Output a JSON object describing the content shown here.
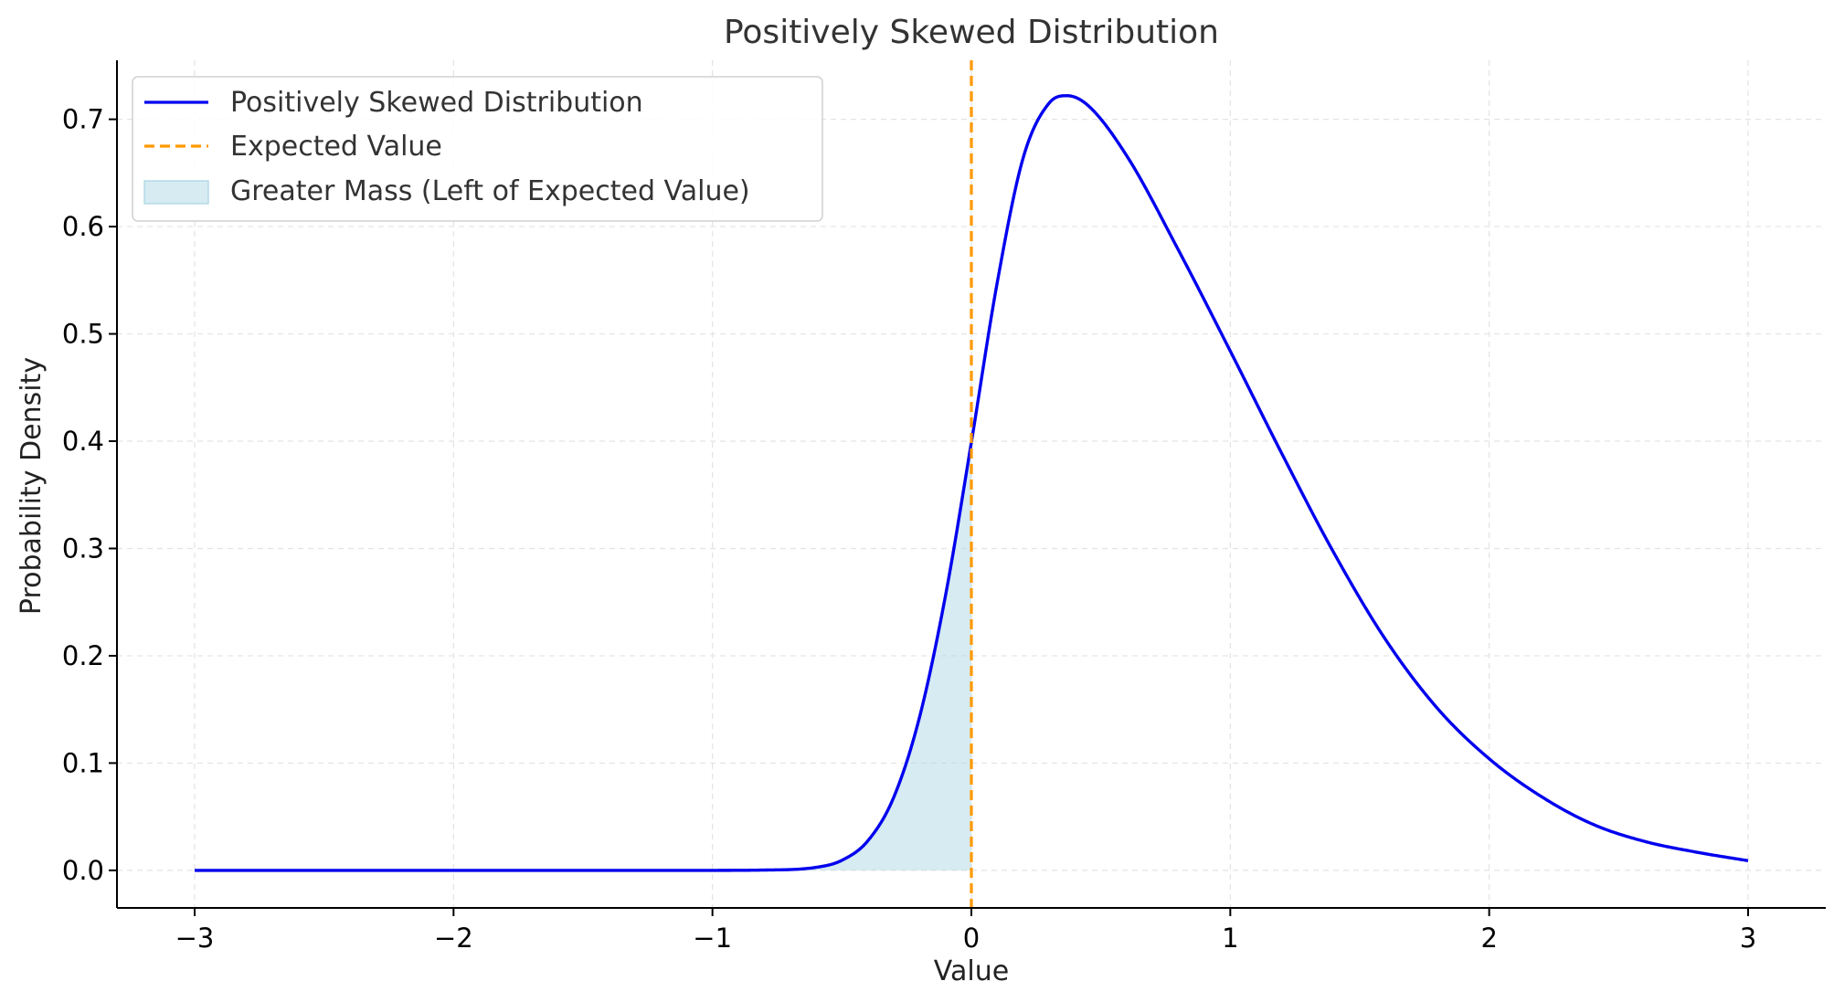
{
  "chart_data": {
    "type": "line",
    "title": "Positively Skewed Distribution",
    "xlabel": "Value",
    "ylabel": "Probability Density",
    "xlim": [
      -3.3,
      3.3
    ],
    "ylim": [
      -0.035,
      0.755
    ],
    "x_ticks": [
      -3,
      -2,
      -1,
      0,
      1,
      2,
      3
    ],
    "x_tick_labels": [
      "−3",
      "−2",
      "−1",
      "0",
      "1",
      "2",
      "3"
    ],
    "y_ticks": [
      0.0,
      0.1,
      0.2,
      0.3,
      0.4,
      0.5,
      0.6,
      0.7
    ],
    "y_tick_labels": [
      "0.0",
      "0.1",
      "0.2",
      "0.3",
      "0.4",
      "0.5",
      "0.6",
      "0.7"
    ],
    "grid": true,
    "legend_position": "top-left",
    "series": [
      {
        "name": "Positively Skewed Distribution",
        "color": "#0000ee",
        "kind": "line",
        "x": [
          -3.0,
          -2.0,
          -1.0,
          -0.8,
          -0.6,
          -0.5,
          -0.4,
          -0.3,
          -0.2,
          -0.1,
          0.0,
          0.1,
          0.2,
          0.3,
          0.37,
          0.45,
          0.6,
          0.8,
          1.0,
          1.2,
          1.4,
          1.6,
          1.8,
          2.0,
          2.2,
          2.4,
          2.6,
          2.8,
          3.0
        ],
        "y": [
          0.0,
          0.0,
          0.0,
          0.0003,
          0.0028,
          0.0094,
          0.0275,
          0.068,
          0.143,
          0.256,
          0.399,
          0.548,
          0.664,
          0.715,
          0.722,
          0.713,
          0.666,
          0.578,
          0.484,
          0.388,
          0.296,
          0.215,
          0.151,
          0.104,
          0.069,
          0.043,
          0.027,
          0.017,
          0.009
        ]
      },
      {
        "name": "Expected Value",
        "color": "#ff9900",
        "kind": "vline",
        "x": 0
      },
      {
        "name": "Greater Mass (Left of Expected Value)",
        "color": "#add8e6",
        "kind": "area",
        "x_range": [
          -3,
          0
        ]
      }
    ]
  }
}
